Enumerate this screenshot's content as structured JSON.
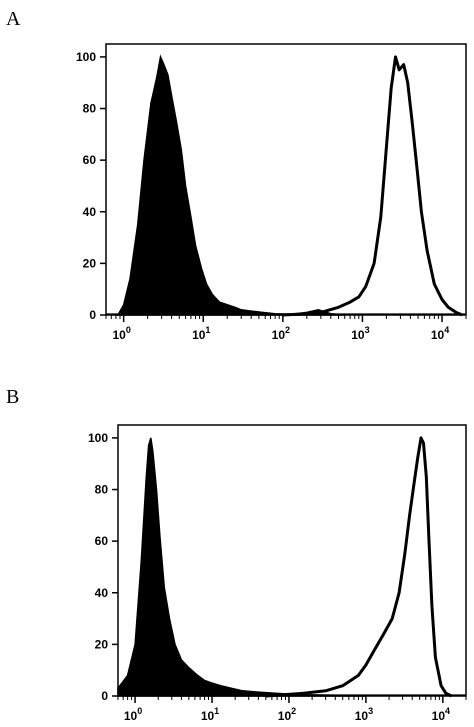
{
  "panels": [
    {
      "label": "A"
    },
    {
      "label": "B"
    }
  ],
  "chart_data": [
    {
      "type": "area",
      "xscale": "log",
      "xlim": [
        0.6,
        20000
      ],
      "ylim": [
        0,
        105
      ],
      "grid": false,
      "yticks": [
        "0",
        "20",
        "40",
        "60",
        "80",
        "100"
      ],
      "xticks": [
        {
          "base": "10",
          "exp": "0",
          "value": 1
        },
        {
          "base": "10",
          "exp": "1",
          "value": 10
        },
        {
          "base": "10",
          "exp": "2",
          "value": 100
        },
        {
          "base": "10",
          "exp": "3",
          "value": 1000
        },
        {
          "base": "10",
          "exp": "4",
          "value": 10000
        }
      ],
      "series": [
        {
          "style": "filled",
          "color": "#000000",
          "x": [
            0.85,
            1.0,
            1.2,
            1.5,
            1.8,
            2.2,
            2.6,
            2.9,
            3.2,
            3.6,
            4.0,
            4.6,
            5.3,
            6.0,
            7.0,
            8.0,
            9.5,
            11,
            13,
            16,
            20,
            25,
            30,
            40,
            55,
            80,
            130,
            200,
            280,
            400,
            600
          ],
          "y": [
            0,
            4,
            14,
            35,
            60,
            82,
            92,
            100,
            97,
            93,
            85,
            75,
            64,
            50,
            38,
            27,
            18,
            12,
            8,
            5,
            4,
            3,
            2,
            1.5,
            1,
            0.5,
            0.3,
            1,
            2,
            0.5,
            0
          ]
        },
        {
          "style": "outline",
          "color": "#000000",
          "x": [
            100,
            200,
            300,
            500,
            700,
            900,
            1100,
            1400,
            1700,
            2000,
            2300,
            2600,
            2900,
            3300,
            3700,
            4200,
            4800,
            5500,
            6500,
            8000,
            10000,
            12000,
            15000,
            18000
          ],
          "y": [
            0,
            0.5,
            1,
            3,
            5,
            7,
            11,
            20,
            38,
            65,
            88,
            100,
            95,
            97,
            90,
            75,
            58,
            40,
            25,
            12,
            6,
            3,
            1,
            0
          ]
        }
      ]
    },
    {
      "type": "area",
      "xscale": "log",
      "xlim": [
        0.6,
        20000
      ],
      "ylim": [
        0,
        105
      ],
      "grid": false,
      "yticks": [
        "0",
        "20",
        "40",
        "60",
        "80",
        "100"
      ],
      "xticks": [
        {
          "base": "10",
          "exp": "0",
          "value": 1
        },
        {
          "base": "10",
          "exp": "1",
          "value": 10
        },
        {
          "base": "10",
          "exp": "2",
          "value": 100
        },
        {
          "base": "10",
          "exp": "3",
          "value": 1000
        },
        {
          "base": "10",
          "exp": "4",
          "value": 10000
        }
      ],
      "series": [
        {
          "style": "filled",
          "color": "#000000",
          "x": [
            0.6,
            0.8,
            1.0,
            1.2,
            1.4,
            1.5,
            1.6,
            1.7,
            1.9,
            2.1,
            2.4,
            2.8,
            3.3,
            4.0,
            5.0,
            6.5,
            8.0,
            10,
            13,
            18,
            25,
            40,
            70,
            150,
            400,
            1000
          ],
          "y": [
            3,
            8,
            20,
            52,
            85,
            97,
            100,
            95,
            80,
            62,
            42,
            30,
            20,
            14,
            11,
            8,
            6,
            5,
            4,
            3,
            2,
            1.5,
            1,
            0.5,
            0.3,
            0
          ]
        },
        {
          "style": "outline",
          "color": "#000000",
          "x": [
            50,
            150,
            300,
            500,
            800,
            1000,
            1300,
            1700,
            2200,
            2700,
            3200,
            3700,
            4200,
            4700,
            5200,
            5600,
            6100,
            6600,
            7200,
            8000,
            9500,
            11000,
            13000
          ],
          "y": [
            0,
            1,
            2,
            4,
            8,
            12,
            18,
            24,
            30,
            40,
            55,
            70,
            82,
            92,
            100,
            98,
            85,
            60,
            35,
            15,
            4,
            1,
            0
          ]
        }
      ]
    }
  ]
}
